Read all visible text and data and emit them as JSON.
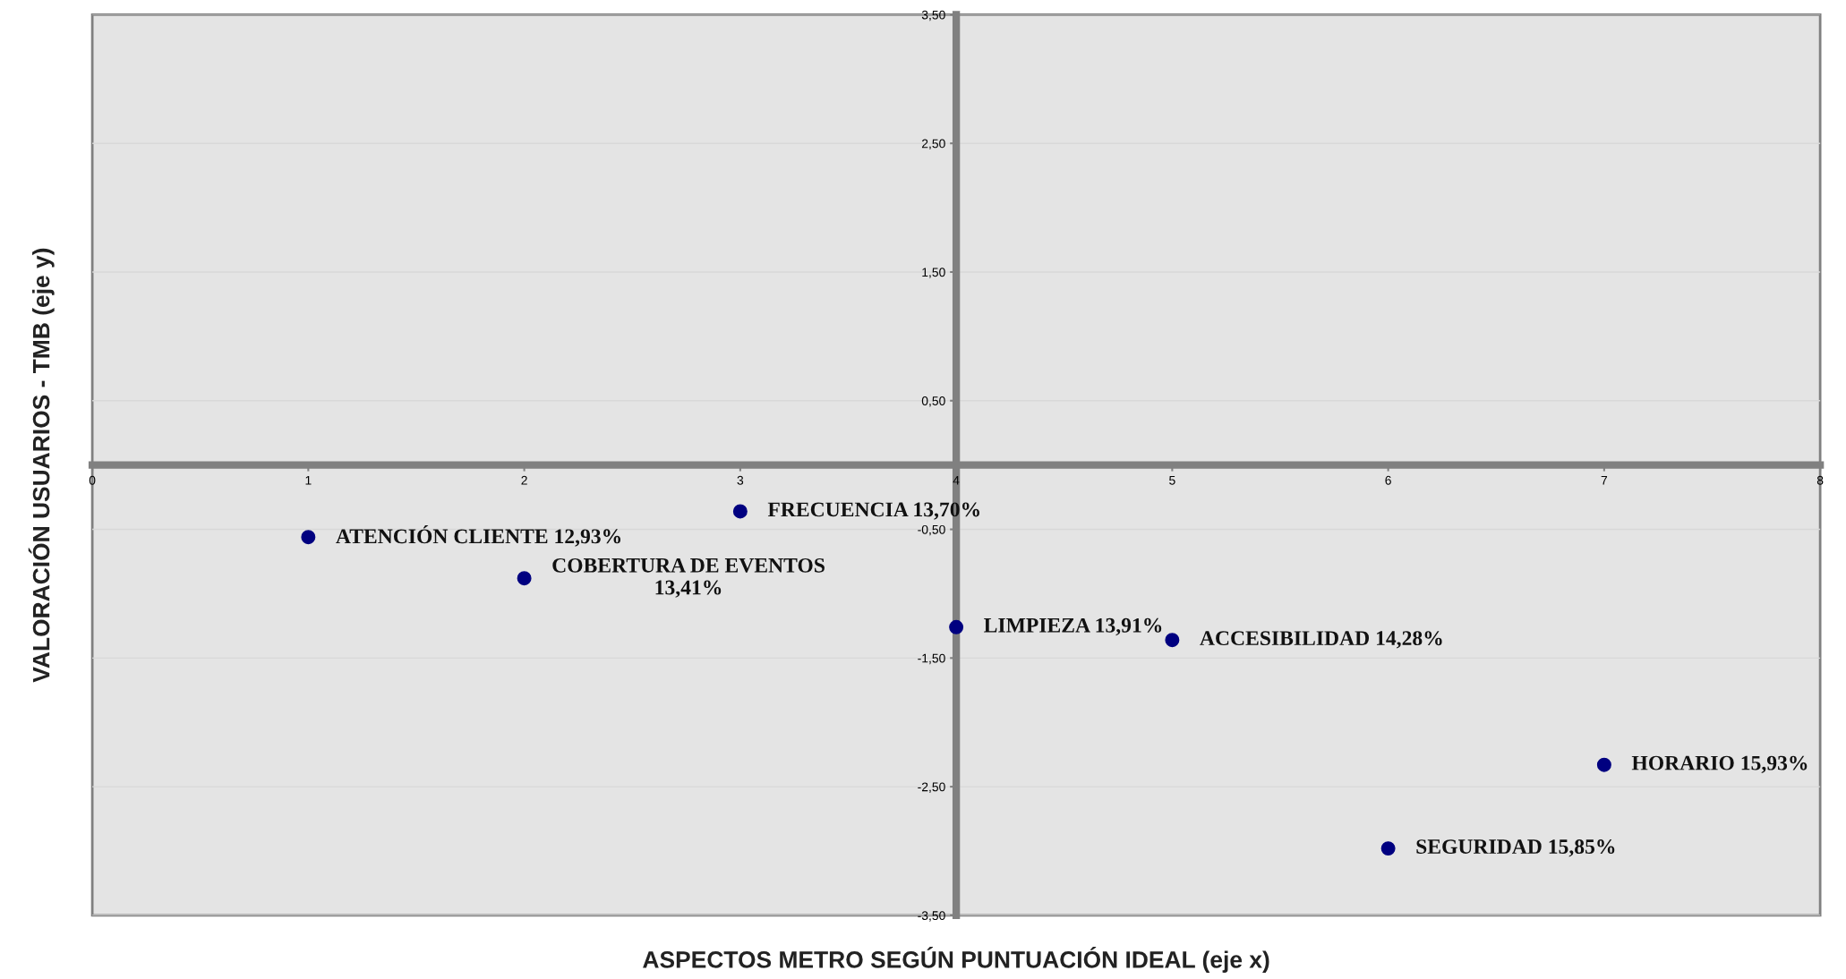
{
  "chart_data": {
    "type": "scatter",
    "xlabel": "ASPECTOS METRO SEGÚN PUNTUACIÓN IDEAL (eje x)",
    "ylabel": "VALORACIÓN USUARIOS - TMB (eje y)",
    "x": [
      1,
      2,
      3,
      4,
      5,
      6,
      7
    ],
    "series": [
      {
        "color": "#000080",
        "values": [
          -0.56,
          -0.88,
          -0.36,
          -1.26,
          -1.36,
          -2.98,
          -2.33
        ]
      }
    ],
    "marker": "circle",
    "grid": "y",
    "legend": false,
    "xlim": [
      0,
      8
    ],
    "ylim": [
      -3.5,
      3.5
    ],
    "xticks": [
      0,
      1,
      2,
      3,
      4,
      5,
      6,
      7,
      8
    ],
    "yticks": [
      {
        "value": -3.5,
        "label": "-3,50"
      },
      {
        "value": -2.5,
        "label": "-2,50"
      },
      {
        "value": -1.5,
        "label": "-1,50"
      },
      {
        "value": -0.5,
        "label": "-0,50"
      },
      {
        "value": 0.5,
        "label": "0,50"
      },
      {
        "value": 1.5,
        "label": "1,50"
      },
      {
        "value": 2.5,
        "label": "2,50"
      },
      {
        "value": 3.5,
        "label": "3,50"
      }
    ],
    "annotations": [
      {
        "text": "ATENCIÓN CLIENTE 12,93%",
        "x": 1,
        "y": -0.56
      },
      {
        "text": "COBERTURA DE EVENTOS\n13,41%",
        "x": 2,
        "y": -0.88
      },
      {
        "text": "FRECUENCIA 13,70%",
        "x": 3,
        "y": -0.36
      },
      {
        "text": "LIMPIEZA 13,91%",
        "x": 4,
        "y": -1.26
      },
      {
        "text": "ACCESIBILIDAD 14,28%",
        "x": 5,
        "y": -1.36
      },
      {
        "text": "SEGURIDAD 15,85%",
        "x": 6,
        "y": -2.98
      },
      {
        "text": "HORARIO 15,93%",
        "x": 7,
        "y": -2.33
      }
    ]
  }
}
